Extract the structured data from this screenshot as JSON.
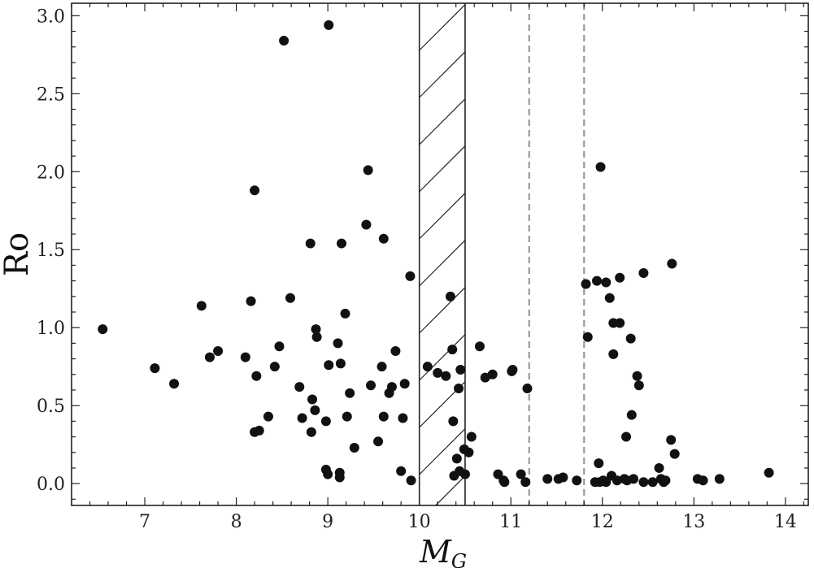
{
  "chart_data": {
    "type": "scatter",
    "xlabel": "M",
    "xlabel_sub": "G",
    "ylabel": "Ro",
    "xlim": [
      6.2,
      14.25
    ],
    "ylim": [
      -0.14,
      3.08
    ],
    "x_ticks": [
      7,
      8,
      9,
      10,
      11,
      12,
      13,
      14
    ],
    "x_tick_labels": [
      "7",
      "8",
      "9",
      "10",
      "11",
      "12",
      "13",
      "14"
    ],
    "y_ticks": [
      0.0,
      0.5,
      1.0,
      1.5,
      2.0,
      2.5,
      3.0
    ],
    "y_tick_labels": [
      "0.0",
      "0.5",
      "1.0",
      "1.5",
      "2.0",
      "2.5",
      "3.0"
    ],
    "grid": false,
    "hatched_band": {
      "x_range": [
        10.0,
        10.5
      ]
    },
    "dashed_lines_x": [
      11.2,
      11.8
    ],
    "colors": {
      "points": "#111111",
      "dashed": "#999999",
      "axes": "#222222"
    },
    "points": [
      [
        6.54,
        0.99
      ],
      [
        7.11,
        0.74
      ],
      [
        7.32,
        0.64
      ],
      [
        7.62,
        1.14
      ],
      [
        7.71,
        0.81
      ],
      [
        7.8,
        0.85
      ],
      [
        8.1,
        0.81
      ],
      [
        8.16,
        1.17
      ],
      [
        8.2,
        1.88
      ],
      [
        8.2,
        0.33
      ],
      [
        8.22,
        0.69
      ],
      [
        8.25,
        0.34
      ],
      [
        8.35,
        0.43
      ],
      [
        8.42,
        0.75
      ],
      [
        8.47,
        0.88
      ],
      [
        8.52,
        2.84
      ],
      [
        8.59,
        1.19
      ],
      [
        8.69,
        0.62
      ],
      [
        8.72,
        0.42
      ],
      [
        8.81,
        1.54
      ],
      [
        8.82,
        0.33
      ],
      [
        8.83,
        0.54
      ],
      [
        8.86,
        0.47
      ],
      [
        8.87,
        0.99
      ],
      [
        8.88,
        0.94
      ],
      [
        8.98,
        0.4
      ],
      [
        8.98,
        0.09
      ],
      [
        9.0,
        0.06
      ],
      [
        9.01,
        0.76
      ],
      [
        9.01,
        2.94
      ],
      [
        9.11,
        0.9
      ],
      [
        9.13,
        0.07
      ],
      [
        9.13,
        0.04
      ],
      [
        9.14,
        0.77
      ],
      [
        9.15,
        1.54
      ],
      [
        9.19,
        1.09
      ],
      [
        9.21,
        0.43
      ],
      [
        9.24,
        0.58
      ],
      [
        9.29,
        0.23
      ],
      [
        9.42,
        1.66
      ],
      [
        9.44,
        2.01
      ],
      [
        9.47,
        0.63
      ],
      [
        9.55,
        0.27
      ],
      [
        9.59,
        0.75
      ],
      [
        9.61,
        1.57
      ],
      [
        9.61,
        0.43
      ],
      [
        9.67,
        0.58
      ],
      [
        9.7,
        0.62
      ],
      [
        9.74,
        0.85
      ],
      [
        9.8,
        0.08
      ],
      [
        9.82,
        0.42
      ],
      [
        9.84,
        0.64
      ],
      [
        9.9,
        1.33
      ],
      [
        9.91,
        0.02
      ],
      [
        10.09,
        0.75
      ],
      [
        10.2,
        0.71
      ],
      [
        10.29,
        0.69
      ],
      [
        10.34,
        1.2
      ],
      [
        10.36,
        0.86
      ],
      [
        10.37,
        0.4
      ],
      [
        10.38,
        0.05
      ],
      [
        10.41,
        0.16
      ],
      [
        10.43,
        0.61
      ],
      [
        10.44,
        0.08
      ],
      [
        10.45,
        0.73
      ],
      [
        10.49,
        0.22
      ],
      [
        10.5,
        0.06
      ],
      [
        10.54,
        0.2
      ],
      [
        10.57,
        0.3
      ],
      [
        10.66,
        0.88
      ],
      [
        10.72,
        0.68
      ],
      [
        10.8,
        0.7
      ],
      [
        10.86,
        0.06
      ],
      [
        10.92,
        0.02
      ],
      [
        10.93,
        0.01
      ],
      [
        11.01,
        0.72
      ],
      [
        11.02,
        0.73
      ],
      [
        11.11,
        0.06
      ],
      [
        11.16,
        0.01
      ],
      [
        11.18,
        0.61
      ],
      [
        11.4,
        0.03
      ],
      [
        11.52,
        0.03
      ],
      [
        11.57,
        0.04
      ],
      [
        11.72,
        0.02
      ],
      [
        11.82,
        1.28
      ],
      [
        11.84,
        0.94
      ],
      [
        11.92,
        0.01
      ],
      [
        11.94,
        1.3
      ],
      [
        11.96,
        0.13
      ],
      [
        11.97,
        0.01
      ],
      [
        11.98,
        2.03
      ],
      [
        12.01,
        0.02
      ],
      [
        12.04,
        1.29
      ],
      [
        12.04,
        0.01
      ],
      [
        12.08,
        1.19
      ],
      [
        12.1,
        0.05
      ],
      [
        12.12,
        1.03
      ],
      [
        12.12,
        0.83
      ],
      [
        12.16,
        0.02
      ],
      [
        12.19,
        1.03
      ],
      [
        12.19,
        1.32
      ],
      [
        12.24,
        0.03
      ],
      [
        12.26,
        0.3
      ],
      [
        12.27,
        0.02
      ],
      [
        12.31,
        0.93
      ],
      [
        12.32,
        0.44
      ],
      [
        12.34,
        0.03
      ],
      [
        12.38,
        0.69
      ],
      [
        12.4,
        0.63
      ],
      [
        12.45,
        1.35
      ],
      [
        12.45,
        0.01
      ],
      [
        12.55,
        0.01
      ],
      [
        12.62,
        0.1
      ],
      [
        12.64,
        0.03
      ],
      [
        12.67,
        0.01
      ],
      [
        12.69,
        0.02
      ],
      [
        12.75,
        0.28
      ],
      [
        12.76,
        1.41
      ],
      [
        12.79,
        0.19
      ],
      [
        13.04,
        0.03
      ],
      [
        13.1,
        0.02
      ],
      [
        13.28,
        0.03
      ],
      [
        13.82,
        0.07
      ]
    ]
  }
}
